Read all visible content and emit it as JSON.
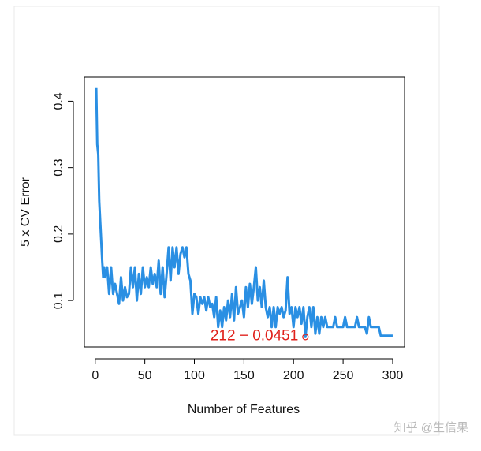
{
  "chart_data": {
    "type": "line",
    "xlabel": "Number of Features",
    "ylabel": "5 x CV Error",
    "watermark": "知乎 @生信果",
    "xlim": [
      -10.96,
      311.96
    ],
    "xticks": [
      0,
      50,
      100,
      150,
      200,
      250,
      300
    ],
    "ylim": [
      0.0301,
      0.4361
    ],
    "yticks": [
      0.1,
      0.2,
      0.3,
      0.4
    ],
    "series": [
      {
        "color": "#2a8fe3",
        "x": [
          1,
          2,
          3,
          4,
          5,
          6,
          7,
          8,
          9,
          10,
          12,
          14,
          16,
          18,
          20,
          22,
          24,
          26,
          28,
          30,
          32,
          34,
          36,
          38,
          40,
          42,
          44,
          46,
          48,
          50,
          52,
          54,
          56,
          58,
          60,
          62,
          64,
          66,
          68,
          70,
          72,
          74,
          76,
          78,
          80,
          82,
          84,
          86,
          88,
          90,
          92,
          94,
          96,
          98,
          100,
          102,
          104,
          106,
          108,
          110,
          112,
          114,
          116,
          118,
          120,
          122,
          124,
          126,
          128,
          130,
          132,
          134,
          136,
          138,
          140,
          142,
          144,
          146,
          148,
          150,
          152,
          154,
          156,
          158,
          160,
          162,
          164,
          166,
          168,
          170,
          172,
          174,
          176,
          178,
          180,
          182,
          184,
          186,
          188,
          190,
          192,
          194,
          196,
          198,
          200,
          202,
          204,
          206,
          208,
          210,
          212,
          214,
          216,
          218,
          220,
          222,
          224,
          226,
          228,
          230,
          232,
          234,
          240,
          242,
          244,
          250,
          252,
          254,
          262,
          264,
          266,
          272,
          274,
          276,
          278,
          286,
          288,
          300
        ],
        "values": [
          0.421,
          0.335,
          0.32,
          0.25,
          0.22,
          0.19,
          0.16,
          0.135,
          0.15,
          0.135,
          0.15,
          0.11,
          0.15,
          0.11,
          0.125,
          0.11,
          0.095,
          0.135,
          0.1,
          0.12,
          0.105,
          0.11,
          0.15,
          0.12,
          0.15,
          0.1,
          0.14,
          0.11,
          0.15,
          0.12,
          0.135,
          0.12,
          0.15,
          0.125,
          0.14,
          0.12,
          0.16,
          0.11,
          0.15,
          0.105,
          0.14,
          0.18,
          0.13,
          0.18,
          0.15,
          0.18,
          0.14,
          0.17,
          0.18,
          0.165,
          0.18,
          0.14,
          0.13,
          0.08,
          0.11,
          0.105,
          0.08,
          0.105,
          0.095,
          0.105,
          0.085,
          0.105,
          0.09,
          0.095,
          0.075,
          0.105,
          0.06,
          0.085,
          0.06,
          0.09,
          0.07,
          0.1,
          0.075,
          0.11,
          0.07,
          0.12,
          0.08,
          0.09,
          0.1,
          0.075,
          0.12,
          0.09,
          0.125,
          0.095,
          0.12,
          0.15,
          0.1,
          0.12,
          0.09,
          0.13,
          0.09,
          0.075,
          0.09,
          0.06,
          0.09,
          0.06,
          0.09,
          0.08,
          0.09,
          0.075,
          0.085,
          0.135,
          0.08,
          0.09,
          0.06,
          0.09,
          0.075,
          0.09,
          0.065,
          0.09,
          0.0451,
          0.075,
          0.09,
          0.06,
          0.09,
          0.05,
          0.075,
          0.05,
          0.075,
          0.06,
          0.075,
          0.06,
          0.06,
          0.075,
          0.06,
          0.06,
          0.075,
          0.06,
          0.06,
          0.075,
          0.06,
          0.06,
          0.05,
          0.075,
          0.06,
          0.06,
          0.047,
          0.047
        ]
      }
    ],
    "best_point": {
      "x": 212,
      "value": 0.0451,
      "color": "#e0201b",
      "label": "212 − 0.0451"
    }
  }
}
